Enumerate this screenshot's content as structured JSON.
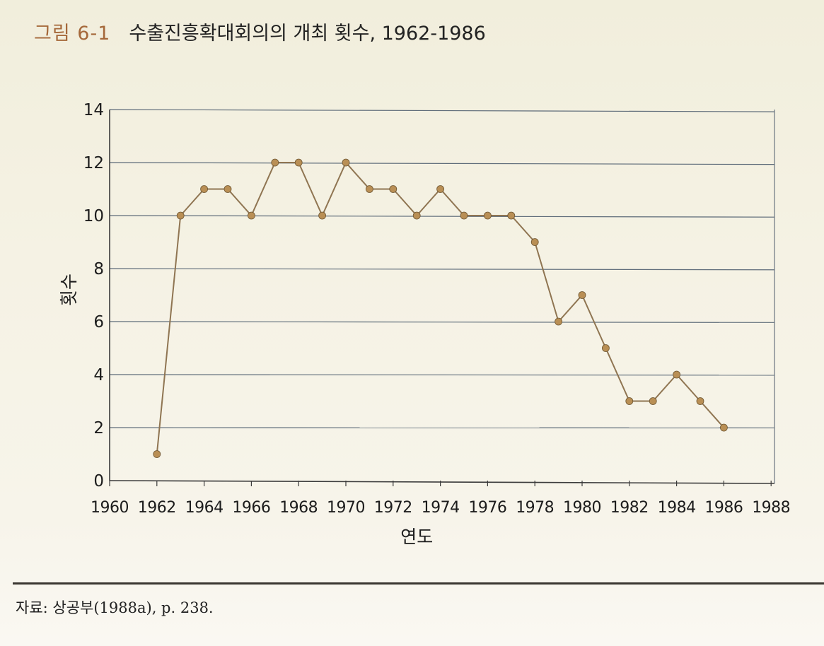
{
  "figure": {
    "label": "그림 6-1",
    "title": "수출진흥확대회의의 개최 횟수, 1962-1986"
  },
  "source_note": "자료: 상공부(1988a), p. 238.",
  "chart_data": {
    "type": "line",
    "title": "수출진흥확대회의의 개최 횟수, 1962-1986",
    "xlabel": "연도",
    "ylabel": "횟수",
    "xlim": [
      1960,
      1988
    ],
    "ylim": [
      0,
      14
    ],
    "x_ticks": [
      1960,
      1962,
      1964,
      1966,
      1968,
      1970,
      1972,
      1974,
      1976,
      1978,
      1980,
      1982,
      1984,
      1986,
      1988
    ],
    "y_ticks": [
      0,
      2,
      4,
      6,
      8,
      10,
      12,
      14
    ],
    "grid": true,
    "legend": "none",
    "series": [
      {
        "x": [
          1962,
          1963,
          1964,
          1965,
          1966,
          1967,
          1968,
          1969,
          1970,
          1971,
          1972,
          1973,
          1974,
          1975,
          1976,
          1977,
          1978,
          1979,
          1980,
          1981,
          1982,
          1983,
          1984,
          1985,
          1986
        ],
        "values": [
          1,
          10,
          11,
          11,
          10,
          12,
          12,
          10,
          12,
          11,
          11,
          10,
          11,
          10,
          10,
          10,
          9,
          6,
          7,
          5,
          3,
          3,
          4,
          3,
          2
        ],
        "color": "#8f7552",
        "marker_color": "#b98f55"
      }
    ]
  }
}
